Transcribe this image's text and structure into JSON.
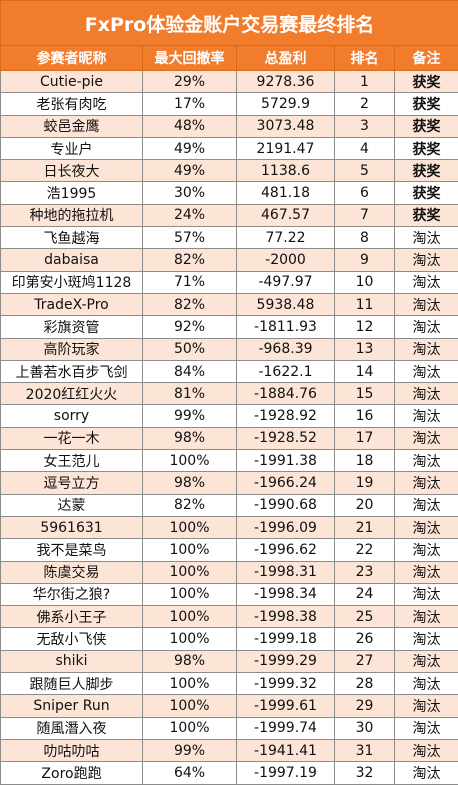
{
  "title": "FxPro体验金账户交易赛最终排名",
  "headers": [
    "参赛者昵称",
    "最大回撤率",
    "总盈利",
    "排名",
    "备注"
  ],
  "rows": [
    {
      "name": "Cutie-pie",
      "drawdown": "29%",
      "profit": "9278.36",
      "rank": "1",
      "note": "获奖"
    },
    {
      "name": "老张有肉吃",
      "drawdown": "17%",
      "profit": "5729.9",
      "rank": "2",
      "note": "获奖"
    },
    {
      "name": "蛟邑金鹰",
      "drawdown": "48%",
      "profit": "3073.48",
      "rank": "3",
      "note": "获奖"
    },
    {
      "name": "专业户",
      "drawdown": "49%",
      "profit": "2191.47",
      "rank": "4",
      "note": "获奖"
    },
    {
      "name": "日长夜大",
      "drawdown": "49%",
      "profit": "1138.6",
      "rank": "5",
      "note": "获奖"
    },
    {
      "name": "浩1995",
      "drawdown": "30%",
      "profit": "481.18",
      "rank": "6",
      "note": "获奖"
    },
    {
      "name": "种地的拖拉机",
      "drawdown": "24%",
      "profit": "467.57",
      "rank": "7",
      "note": "获奖"
    },
    {
      "name": "飞鱼越海",
      "drawdown": "57%",
      "profit": "77.22",
      "rank": "8",
      "note": "淘汰"
    },
    {
      "name": "dabaisa",
      "drawdown": "82%",
      "profit": "-2000",
      "rank": "9",
      "note": "淘汰"
    },
    {
      "name": "印第安小斑鸠1128",
      "drawdown": "71%",
      "profit": "-497.97",
      "rank": "10",
      "note": "淘汰"
    },
    {
      "name": "TradeX-Pro",
      "drawdown": "82%",
      "profit": "5938.48",
      "rank": "11",
      "note": "淘汰"
    },
    {
      "name": "彩旗资管",
      "drawdown": "92%",
      "profit": "-1811.93",
      "rank": "12",
      "note": "淘汰"
    },
    {
      "name": "高阶玩家",
      "drawdown": "50%",
      "profit": "-968.39",
      "rank": "13",
      "note": "淘汰"
    },
    {
      "name": "上善若水百步飞剑",
      "drawdown": "84%",
      "profit": "-1622.1",
      "rank": "14",
      "note": "淘汰"
    },
    {
      "name": "2020红红火火",
      "drawdown": "81%",
      "profit": "-1884.76",
      "rank": "15",
      "note": "淘汰"
    },
    {
      "name": "sorry",
      "drawdown": "99%",
      "profit": "-1928.92",
      "rank": "16",
      "note": "淘汰"
    },
    {
      "name": "一花一木",
      "drawdown": "98%",
      "profit": "-1928.52",
      "rank": "17",
      "note": "淘汰"
    },
    {
      "name": "女王范儿",
      "drawdown": "100%",
      "profit": "-1991.38",
      "rank": "18",
      "note": "淘汰"
    },
    {
      "name": "逗号立方",
      "drawdown": "98%",
      "profit": "-1966.24",
      "rank": "19",
      "note": "淘汰"
    },
    {
      "name": "达蒙",
      "drawdown": "82%",
      "profit": "-1990.68",
      "rank": "20",
      "note": "淘汰"
    },
    {
      "name": "5961631",
      "drawdown": "100%",
      "profit": "-1996.09",
      "rank": "21",
      "note": "淘汰"
    },
    {
      "name": "我不是菜鸟",
      "drawdown": "100%",
      "profit": "-1996.62",
      "rank": "22",
      "note": "淘汰"
    },
    {
      "name": "陈虞交易",
      "drawdown": "100%",
      "profit": "-1998.31",
      "rank": "23",
      "note": "淘汰"
    },
    {
      "name": "华尔街之狼?",
      "drawdown": "100%",
      "profit": "-1998.34",
      "rank": "24",
      "note": "淘汰"
    },
    {
      "name": "佛系小王子",
      "drawdown": "100%",
      "profit": "-1998.38",
      "rank": "25",
      "note": "淘汰"
    },
    {
      "name": "无敌小飞侠",
      "drawdown": "100%",
      "profit": "-1999.18",
      "rank": "26",
      "note": "淘汰"
    },
    {
      "name": "shiki",
      "drawdown": "98%",
      "profit": "-1999.29",
      "rank": "27",
      "note": "淘汰"
    },
    {
      "name": "跟随巨人脚步",
      "drawdown": "100%",
      "profit": "-1999.32",
      "rank": "28",
      "note": "淘汰"
    },
    {
      "name": "Sniper Run",
      "drawdown": "100%",
      "profit": "-1999.61",
      "rank": "29",
      "note": "淘汰"
    },
    {
      "name": "随風潛入夜",
      "drawdown": "100%",
      "profit": "-1999.74",
      "rank": "30",
      "note": "淘汰"
    },
    {
      "name": "叻咕叻咕",
      "drawdown": "99%",
      "profit": "-1941.41",
      "rank": "31",
      "note": "淘汰"
    },
    {
      "name": "Zoro跑跑",
      "drawdown": "64%",
      "profit": "-1997.19",
      "rank": "32",
      "note": "淘汰"
    }
  ]
}
